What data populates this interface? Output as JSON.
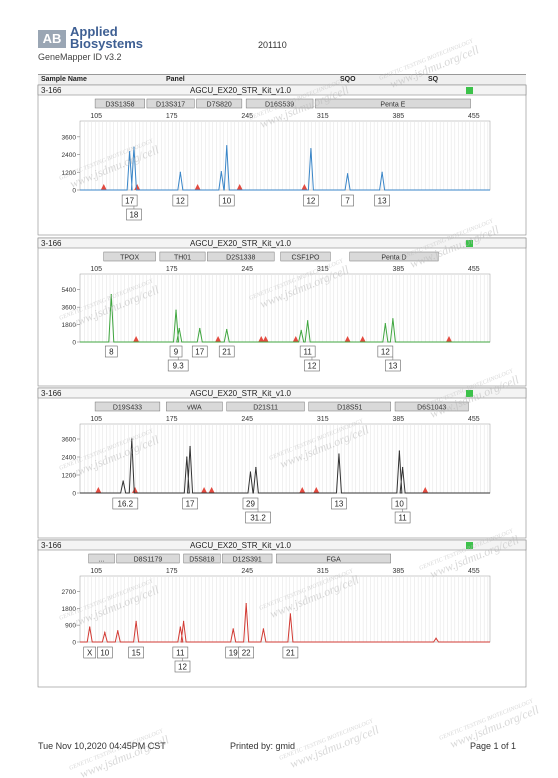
{
  "header": {
    "logo_line1": "Applied",
    "logo_line2": "Biosystems",
    "logo_mark": "AB",
    "app_version": "GeneMapper ID v3.2",
    "report_id": "201110",
    "col_sample": "Sample Name",
    "col_panel": "Panel",
    "col_sqo": "SQO",
    "col_sq": "SQ"
  },
  "watermark": {
    "line1": "GENETIC TESTING BIOTECHNOLOGY",
    "line2": "www.jsdmu.org/cell"
  },
  "footer": {
    "date": "Tue Nov 10,2020 04:45PM  CST",
    "printed_by": "Printed by: gmid",
    "page": "Page 1 of 1"
  },
  "chart_data": [
    {
      "type": "line",
      "sample": "3-166",
      "panel": "AGCU_EX20_STR_Kit_v1.0",
      "color": "#3a86c8",
      "x_ticks": [
        105,
        175,
        245,
        315,
        385,
        455
      ],
      "y_ticks": [
        0,
        1200,
        2400,
        3600
      ],
      "ylim": [
        0,
        4200
      ],
      "xlim": [
        90,
        470
      ],
      "markers": [
        {
          "name": "D3S1358",
          "from": 104,
          "to": 150
        },
        {
          "name": "D13S317",
          "from": 152,
          "to": 196
        },
        {
          "name": "D7S820",
          "from": 198,
          "to": 240
        },
        {
          "name": "D16S539",
          "from": 244,
          "to": 306
        },
        {
          "name": "Penta E",
          "from": 308,
          "to": 452
        }
      ],
      "peaks": [
        {
          "x": 136,
          "h": 2600
        },
        {
          "x": 140,
          "h": 2900
        },
        {
          "x": 183,
          "h": 1200
        },
        {
          "x": 221,
          "h": 1250
        },
        {
          "x": 226,
          "h": 3000
        },
        {
          "x": 304,
          "h": 2800
        },
        {
          "x": 338,
          "h": 1100
        },
        {
          "x": 370,
          "h": 1200
        }
      ],
      "alleles": [
        {
          "x": 136,
          "row": 1,
          "label": "17"
        },
        {
          "x": 140,
          "row": 2,
          "label": "18"
        },
        {
          "x": 183,
          "row": 1,
          "label": "12"
        },
        {
          "x": 226,
          "row": 1,
          "label": "10"
        },
        {
          "x": 304,
          "row": 1,
          "label": "12"
        },
        {
          "x": 338,
          "row": 1,
          "label": "7"
        },
        {
          "x": 370,
          "row": 1,
          "label": "13"
        }
      ],
      "flags": [
        112,
        143,
        199,
        238,
        298
      ]
    },
    {
      "type": "line",
      "sample": "3-166",
      "panel": "AGCU_EX20_STR_Kit_v1.0",
      "color": "#3fa63f",
      "x_ticks": [
        105,
        175,
        245,
        315,
        385,
        455
      ],
      "y_ticks": [
        0,
        1800,
        3600,
        5400
      ],
      "y_tick_labels": [
        "0",
        "1800",
        "3600",
        "5400"
      ],
      "ylim": [
        0,
        6200
      ],
      "xlim": [
        90,
        470
      ],
      "markers": [
        {
          "name": "TPOX",
          "from": 112,
          "to": 160
        },
        {
          "name": "TH01",
          "from": 164,
          "to": 206
        },
        {
          "name": "D2S1338",
          "from": 208,
          "to": 270
        },
        {
          "name": "CSF1PO",
          "from": 276,
          "to": 322
        },
        {
          "name": "Penta D",
          "from": 340,
          "to": 422
        }
      ],
      "peaks": [
        {
          "x": 119,
          "h": 4900
        },
        {
          "x": 179,
          "h": 3300
        },
        {
          "x": 182,
          "h": 1400
        },
        {
          "x": 201,
          "h": 1400
        },
        {
          "x": 226,
          "h": 1300
        },
        {
          "x": 295,
          "h": 1200
        },
        {
          "x": 301,
          "h": 2200
        },
        {
          "x": 373,
          "h": 1900
        },
        {
          "x": 380,
          "h": 2400
        }
      ],
      "alleles": [
        {
          "x": 119,
          "row": 1,
          "label": "8"
        },
        {
          "x": 179,
          "row": 1,
          "label": "9"
        },
        {
          "x": 181,
          "row": 2,
          "label": "9.3"
        },
        {
          "x": 201,
          "row": 1,
          "label": "17"
        },
        {
          "x": 226,
          "row": 1,
          "label": "21"
        },
        {
          "x": 301,
          "row": 1,
          "label": "11"
        },
        {
          "x": 305,
          "row": 2,
          "label": "12"
        },
        {
          "x": 373,
          "row": 1,
          "label": "12"
        },
        {
          "x": 380,
          "row": 2,
          "label": "13"
        }
      ],
      "flags": [
        142,
        218,
        258,
        262,
        290,
        338,
        352,
        432
      ]
    },
    {
      "type": "line",
      "sample": "3-166",
      "panel": "AGCU_EX20_STR_Kit_v1.0",
      "color": "#333333",
      "x_ticks": [
        105,
        175,
        245,
        315,
        385,
        455
      ],
      "y_ticks": [
        0,
        1200,
        2400,
        3600
      ],
      "ylim": [
        0,
        4200
      ],
      "xlim": [
        90,
        470
      ],
      "markers": [
        {
          "name": "D19S433",
          "from": 104,
          "to": 164
        },
        {
          "name": "vWA",
          "from": 170,
          "to": 222
        },
        {
          "name": "D21S11",
          "from": 226,
          "to": 298
        },
        {
          "name": "D18S51",
          "from": 302,
          "to": 378
        },
        {
          "name": "D6S1043",
          "from": 382,
          "to": 450
        }
      ],
      "peaks": [
        {
          "x": 130,
          "h": 800
        },
        {
          "x": 138,
          "h": 3600
        },
        {
          "x": 189,
          "h": 2400
        },
        {
          "x": 192,
          "h": 3100
        },
        {
          "x": 248,
          "h": 1400
        },
        {
          "x": 253,
          "h": 1700
        },
        {
          "x": 330,
          "h": 2600
        },
        {
          "x": 386,
          "h": 2800
        },
        {
          "x": 389,
          "h": 1700
        }
      ],
      "alleles": [
        {
          "x": 132,
          "row": 1,
          "label": "16.2"
        },
        {
          "x": 192,
          "row": 1,
          "label": "17"
        },
        {
          "x": 248,
          "row": 1,
          "label": "29"
        },
        {
          "x": 255,
          "row": 2,
          "label": "31.2"
        },
        {
          "x": 330,
          "row": 1,
          "label": "13"
        },
        {
          "x": 386,
          "row": 1,
          "label": "10"
        },
        {
          "x": 389,
          "row": 2,
          "label": "11"
        }
      ],
      "flags": [
        107,
        141,
        205,
        212,
        296,
        309,
        410
      ]
    },
    {
      "type": "line",
      "sample": "3-166",
      "panel": "AGCU_EX20_STR_Kit_v1.0",
      "color": "#d23a33",
      "x_ticks": [
        105,
        175,
        245,
        315,
        385,
        455
      ],
      "y_ticks": [
        0,
        900,
        1800,
        2700
      ],
      "ylim": [
        0,
        3200
      ],
      "xlim": [
        90,
        470
      ],
      "markers": [
        {
          "name": "...",
          "from": 98,
          "to": 122
        },
        {
          "name": "D8S1179",
          "from": 124,
          "to": 182
        },
        {
          "name": "D5S818",
          "from": 186,
          "to": 220
        },
        {
          "name": "D12S391",
          "from": 222,
          "to": 268
        },
        {
          "name": "FGA",
          "from": 272,
          "to": 378
        }
      ],
      "peaks": [
        {
          "x": 99,
          "h": 800
        },
        {
          "x": 113,
          "h": 500
        },
        {
          "x": 125,
          "h": 600
        },
        {
          "x": 142,
          "h": 1100
        },
        {
          "x": 183,
          "h": 800
        },
        {
          "x": 186,
          "h": 1100
        },
        {
          "x": 232,
          "h": 700
        },
        {
          "x": 244,
          "h": 2050
        },
        {
          "x": 260,
          "h": 700
        },
        {
          "x": 285,
          "h": 1500
        },
        {
          "x": 420,
          "h": 200
        }
      ],
      "alleles": [
        {
          "x": 99,
          "row": 1,
          "label": "X"
        },
        {
          "x": 113,
          "row": 1,
          "label": "10"
        },
        {
          "x": 142,
          "row": 1,
          "label": "15"
        },
        {
          "x": 183,
          "row": 1,
          "label": "11"
        },
        {
          "x": 185,
          "row": 2,
          "label": "12"
        },
        {
          "x": 232,
          "row": 1,
          "label": "19"
        },
        {
          "x": 244,
          "row": 1,
          "label": "22"
        },
        {
          "x": 285,
          "row": 1,
          "label": "21"
        }
      ],
      "flags": []
    }
  ]
}
